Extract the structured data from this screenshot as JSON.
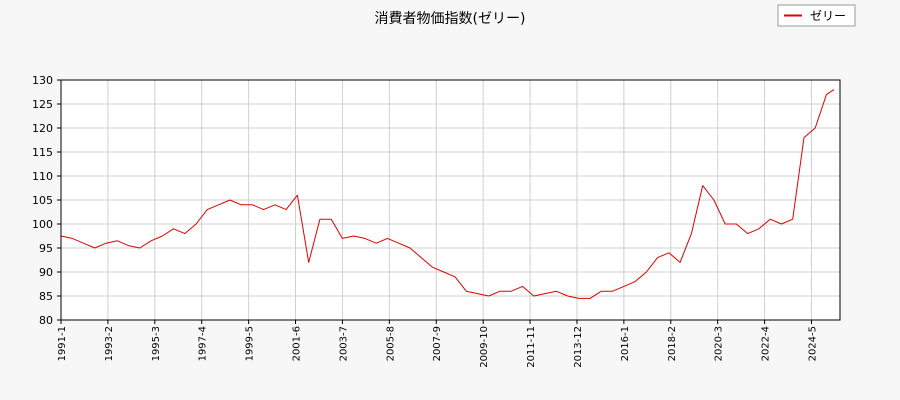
{
  "chart_data": {
    "type": "line",
    "title": "消費者物価指数(ゼリー)",
    "xlabel": "",
    "ylabel": "",
    "ylim": [
      80,
      130
    ],
    "y_ticks": [
      80,
      85,
      90,
      95,
      100,
      105,
      110,
      115,
      120,
      125,
      130
    ],
    "x_ticks": [
      "1991-1",
      "1993-2",
      "1995-3",
      "1997-4",
      "1999-5",
      "2001-6",
      "2003-7",
      "2005-8",
      "2007-9",
      "2009-10",
      "2011-11",
      "2013-12",
      "2016-1",
      "2018-2",
      "2020-3",
      "2022-4",
      "2024-5"
    ],
    "grid": true,
    "legend_position": "top-right",
    "colors": {
      "line": "#e00000",
      "grid": "#d0d0d0",
      "background": "#f7f7f7",
      "plot": "#ffffff"
    },
    "series": [
      {
        "name": "ゼリー",
        "x": [
          "1991-01",
          "1991-07",
          "1992-01",
          "1992-07",
          "1993-01",
          "1993-07",
          "1994-01",
          "1994-07",
          "1995-01",
          "1995-07",
          "1996-01",
          "1996-07",
          "1997-01",
          "1997-07",
          "1998-01",
          "1998-07",
          "1999-01",
          "1999-07",
          "2000-01",
          "2000-07",
          "2001-01",
          "2001-07",
          "2002-01",
          "2002-07",
          "2003-01",
          "2003-07",
          "2004-01",
          "2004-07",
          "2005-01",
          "2005-07",
          "2006-01",
          "2006-07",
          "2007-01",
          "2007-07",
          "2008-01",
          "2008-07",
          "2009-01",
          "2009-07",
          "2010-01",
          "2010-07",
          "2011-01",
          "2011-07",
          "2012-01",
          "2012-07",
          "2013-01",
          "2013-07",
          "2014-01",
          "2014-07",
          "2015-01",
          "2015-07",
          "2016-01",
          "2016-07",
          "2017-01",
          "2017-07",
          "2018-01",
          "2018-07",
          "2019-01",
          "2019-07",
          "2020-01",
          "2020-07",
          "2021-01",
          "2021-07",
          "2022-01",
          "2022-07",
          "2023-01",
          "2023-07",
          "2024-01",
          "2024-07",
          "2025-01",
          "2025-05"
        ],
        "values": [
          97.5,
          97,
          96,
          95,
          96,
          96.5,
          95.5,
          95,
          96.5,
          97.5,
          99,
          98,
          100,
          103,
          104,
          105,
          104,
          104,
          103,
          104,
          103,
          106,
          92,
          101,
          101,
          97,
          97.5,
          97,
          96,
          97,
          96,
          95,
          93,
          91,
          90,
          89,
          86,
          85.5,
          85,
          86,
          86,
          87,
          85,
          85.5,
          86,
          85,
          84.5,
          84.5,
          86,
          86,
          87,
          88,
          90,
          93,
          94,
          92,
          98,
          108,
          105,
          100,
          100,
          98,
          99,
          101,
          100,
          101,
          118,
          120,
          127,
          128
        ]
      }
    ]
  }
}
